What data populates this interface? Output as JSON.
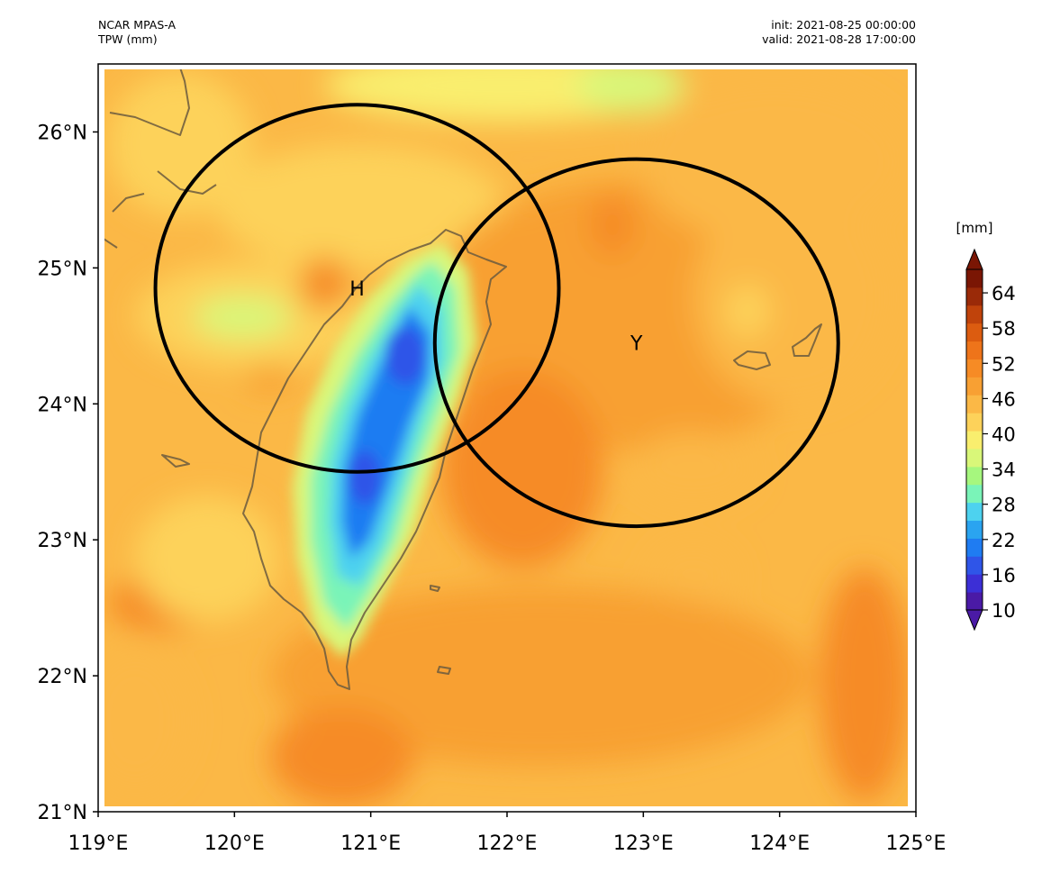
{
  "header": {
    "model": "NCAR MPAS-A",
    "field": "TPW (mm)",
    "init": "init: 2021-08-25 00:00:00",
    "valid": "valid: 2021-08-28 17:00:00"
  },
  "chart_data": {
    "type": "contour-map",
    "x_ticks": [
      "119°E",
      "120°E",
      "121°E",
      "122°E",
      "123°E",
      "124°E",
      "125°E"
    ],
    "x_tick_values": [
      119,
      120,
      121,
      122,
      123,
      124,
      125
    ],
    "y_ticks": [
      "21°N",
      "22°N",
      "23°N",
      "24°N",
      "25°N",
      "26°N"
    ],
    "y_tick_values": [
      21,
      22,
      23,
      24,
      25,
      26
    ],
    "xlim": [
      119,
      125
    ],
    "ylim": [
      21,
      26.5
    ],
    "colorbar": {
      "unit": "[mm]",
      "tick_labels": [
        "10",
        "16",
        "22",
        "28",
        "34",
        "40",
        "46",
        "52",
        "58",
        "64"
      ],
      "tick_values": [
        10,
        16,
        22,
        28,
        34,
        40,
        46,
        52,
        58,
        64
      ],
      "range": [
        10,
        68
      ],
      "extend": "both",
      "colors": [
        "#4a1aa6",
        "#3c2fd6",
        "#2f55e8",
        "#1f7cf2",
        "#2aa4f0",
        "#4dd2ef",
        "#7af4b8",
        "#a6f77e",
        "#d9f779",
        "#f9ee6e",
        "#fdd25a",
        "#fbb846",
        "#f8a033",
        "#f68b25",
        "#ee741a",
        "#dc5c10",
        "#c0430b",
        "#9a2a08",
        "#7a1604"
      ]
    },
    "circles": [
      {
        "label": "H",
        "center_lon": 120.9,
        "center_lat": 24.85,
        "radius_lon": 1.48,
        "radius_lat": 1.35
      },
      {
        "label": "Y",
        "center_lon": 122.95,
        "center_lat": 24.45,
        "radius_lon": 1.48,
        "radius_lat": 1.35
      }
    ]
  }
}
